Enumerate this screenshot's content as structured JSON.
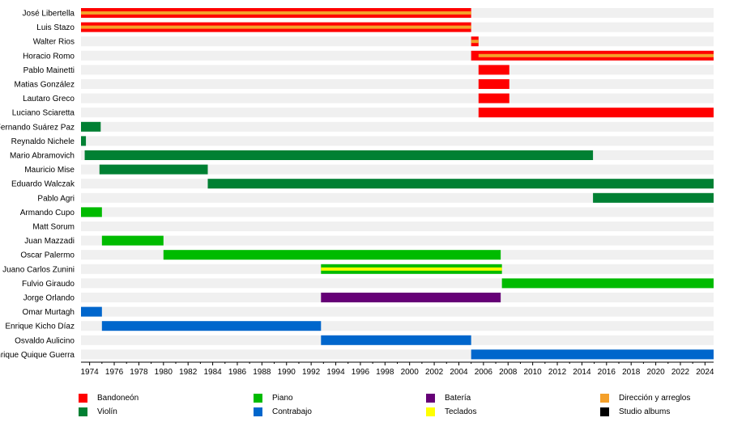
{
  "colors": {
    "Bandoneón": "#ff0000",
    "Violín": "#008033",
    "Piano": "#00bb00",
    "Contrabajo": "#0066cc",
    "Batería": "#660077",
    "Teclados": "#ffff00",
    "Dirección y arreglos": "#f4a02a",
    "Studio albums": "#000000",
    "row_bg": "#f0f0f0"
  },
  "chart_data": {
    "type": "timeline",
    "x_ticks": [
      1974,
      1976,
      1978,
      1980,
      1982,
      1984,
      1986,
      1988,
      1990,
      1992,
      1994,
      1996,
      1998,
      2000,
      2002,
      2004,
      2006,
      2008,
      2010,
      2012,
      2014,
      2016,
      2018,
      2020,
      2022,
      2024
    ],
    "xlim": [
      1973.3,
      2024.7
    ],
    "members": [
      {
        "name": "José Libertella",
        "periods": [
          {
            "start": 1973.3,
            "end": 2005.0,
            "role": "Bandoneón",
            "stripe": "Dirección y arreglos"
          }
        ]
      },
      {
        "name": "Luis Stazo",
        "periods": [
          {
            "start": 1973.3,
            "end": 2005.0,
            "role": "Bandoneón",
            "stripe": "Dirección y arreglos"
          }
        ]
      },
      {
        "name": "Walter Rios",
        "periods": [
          {
            "start": 2005.0,
            "end": 2005.6,
            "role": "Bandoneón",
            "stripe": "Dirección y arreglos"
          }
        ]
      },
      {
        "name": "Horacio Romo",
        "periods": [
          {
            "start": 2005.0,
            "end": 2024.7,
            "role": "Bandoneón",
            "stripe": "Dirección y arreglos",
            "stripe_start": 2005.6
          }
        ]
      },
      {
        "name": "Pablo Mainetti",
        "periods": [
          {
            "start": 2005.6,
            "end": 2008.1,
            "role": "Bandoneón"
          }
        ]
      },
      {
        "name": "Matias González",
        "periods": [
          {
            "start": 2005.6,
            "end": 2008.1,
            "role": "Bandoneón"
          }
        ]
      },
      {
        "name": "Lautaro Greco",
        "periods": [
          {
            "start": 2005.6,
            "end": 2008.1,
            "role": "Bandoneón"
          }
        ]
      },
      {
        "name": "Luciano Sciaretta",
        "periods": [
          {
            "start": 2005.6,
            "end": 2024.7,
            "role": "Bandoneón"
          }
        ]
      },
      {
        "name": "Fernando Suárez Paz",
        "periods": [
          {
            "start": 1973.3,
            "end": 1974.9,
            "role": "Violín"
          }
        ]
      },
      {
        "name": "Reynaldo Nichele",
        "periods": [
          {
            "start": 1973.3,
            "end": 1973.7,
            "role": "Violín"
          }
        ]
      },
      {
        "name": "Mario Abramovich",
        "periods": [
          {
            "start": 1973.6,
            "end": 2014.9,
            "role": "Violín"
          }
        ]
      },
      {
        "name": "Mauricio Mise",
        "periods": [
          {
            "start": 1974.8,
            "end": 1983.6,
            "role": "Violín"
          }
        ]
      },
      {
        "name": "Eduardo Walczak",
        "periods": [
          {
            "start": 1983.6,
            "end": 2024.7,
            "role": "Violín"
          }
        ]
      },
      {
        "name": "Pablo Agri",
        "periods": [
          {
            "start": 2014.9,
            "end": 2024.7,
            "role": "Violín"
          }
        ]
      },
      {
        "name": "Armando Cupo",
        "periods": [
          {
            "start": 1973.3,
            "end": 1975.0,
            "role": "Piano"
          }
        ]
      },
      {
        "name": "Matt Sorum",
        "periods": []
      },
      {
        "name": "Juan Mazzadi",
        "periods": [
          {
            "start": 1975.0,
            "end": 1980.0,
            "role": "Piano"
          }
        ]
      },
      {
        "name": "Oscar Palermo",
        "periods": [
          {
            "start": 1980.0,
            "end": 2007.4,
            "role": "Piano"
          }
        ]
      },
      {
        "name": "Juano Carlos Zunini",
        "periods": [
          {
            "start": 1992.8,
            "end": 2007.5,
            "role": "Piano",
            "stripe": "Teclados"
          }
        ]
      },
      {
        "name": "Fulvio Giraudo",
        "periods": [
          {
            "start": 2007.5,
            "end": 2024.7,
            "role": "Piano"
          }
        ]
      },
      {
        "name": "Jorge Orlando",
        "periods": [
          {
            "start": 1992.8,
            "end": 2007.4,
            "role": "Batería"
          }
        ]
      },
      {
        "name": "Omar Murtagh",
        "periods": [
          {
            "start": 1973.3,
            "end": 1975.0,
            "role": "Contrabajo"
          }
        ]
      },
      {
        "name": "Enrique Kicho Díaz",
        "periods": [
          {
            "start": 1975.0,
            "end": 1992.8,
            "role": "Contrabajo"
          }
        ]
      },
      {
        "name": "Osvaldo Aulicino",
        "periods": [
          {
            "start": 1992.8,
            "end": 2005.0,
            "role": "Contrabajo"
          }
        ]
      },
      {
        "name": "Enrique Quique Guerra",
        "periods": [
          {
            "start": 2005.0,
            "end": 2024.7,
            "role": "Contrabajo"
          }
        ]
      }
    ],
    "legend": [
      [
        "Bandoneón",
        "Violín"
      ],
      [
        "Piano",
        "Contrabajo"
      ],
      [
        "Batería",
        "Teclados"
      ],
      [
        "Dirección y arreglos",
        "Studio albums"
      ]
    ]
  }
}
